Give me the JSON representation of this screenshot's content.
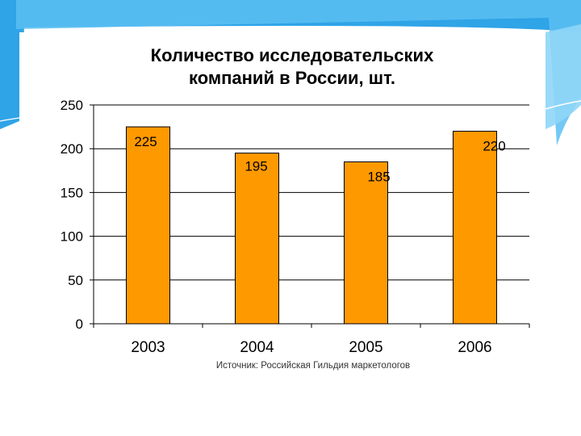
{
  "chart_data": {
    "type": "bar",
    "title_lines": [
      "Количество исследовательских",
      "компаний в России, шт."
    ],
    "categories": [
      "2003",
      "2004",
      "2005",
      "2006"
    ],
    "values": [
      225,
      195,
      185,
      220
    ],
    "data_labels": [
      "225",
      "195",
      "185",
      "220"
    ],
    "yticks": [
      "0",
      "50",
      "100",
      "150",
      "200",
      "250"
    ],
    "ytick_values": [
      0,
      50,
      100,
      150,
      200,
      250
    ],
    "ylim": [
      0,
      250
    ],
    "grid": true,
    "source": "Источник: Российская Гильдия маркетологов",
    "colors": {
      "bar_fill": "#FF9900",
      "bar_stroke": "#000000",
      "grid": "#000000",
      "accent_blue": "#3FA9E6"
    }
  }
}
